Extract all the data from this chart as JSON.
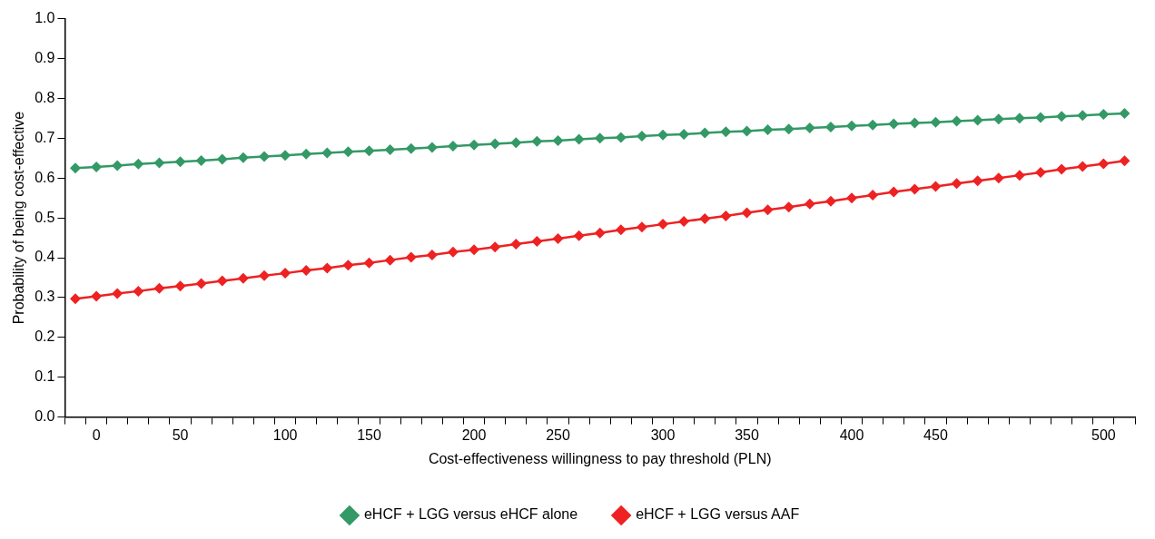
{
  "chart_data": {
    "type": "line",
    "xlabel": "Cost-effectiveness willingness to pay threshold (PLN)",
    "ylabel": "Probability of being cost-effective",
    "categories": [
      null,
      "0",
      null,
      null,
      null,
      "50",
      null,
      null,
      null,
      null,
      "100",
      null,
      null,
      null,
      "150",
      null,
      null,
      null,
      null,
      "200",
      null,
      null,
      null,
      "250",
      null,
      null,
      null,
      null,
      "300",
      null,
      null,
      null,
      "350",
      null,
      null,
      null,
      null,
      "400",
      null,
      null,
      null,
      "450",
      null,
      null,
      null,
      null,
      null,
      null,
      null,
      "500",
      null
    ],
    "series": [
      {
        "name": "eHCF + LGG versus eHCF alone",
        "color": "#339966",
        "values": [
          0.625,
          0.628,
          0.631,
          0.635,
          0.638,
          0.641,
          0.644,
          0.647,
          0.651,
          0.654,
          0.657,
          0.66,
          0.663,
          0.666,
          0.668,
          0.671,
          0.674,
          0.677,
          0.68,
          0.683,
          0.686,
          0.689,
          0.692,
          0.694,
          0.697,
          0.7,
          0.702,
          0.705,
          0.708,
          0.71,
          0.713,
          0.716,
          0.718,
          0.721,
          0.723,
          0.726,
          0.728,
          0.731,
          0.733,
          0.736,
          0.738,
          0.74,
          0.743,
          0.745,
          0.748,
          0.75,
          0.752,
          0.755,
          0.757,
          0.76,
          0.762
        ]
      },
      {
        "name": "eHCF + LGG versus AAF",
        "color": "#ee2222",
        "values": [
          0.297,
          0.303,
          0.31,
          0.316,
          0.323,
          0.329,
          0.335,
          0.342,
          0.348,
          0.355,
          0.361,
          0.368,
          0.374,
          0.381,
          0.387,
          0.394,
          0.401,
          0.407,
          0.414,
          0.42,
          0.427,
          0.434,
          0.441,
          0.448,
          0.455,
          0.462,
          0.47,
          0.477,
          0.484,
          0.491,
          0.498,
          0.505,
          0.513,
          0.52,
          0.527,
          0.535,
          0.542,
          0.55,
          0.557,
          0.565,
          0.572,
          0.579,
          0.586,
          0.593,
          0.6,
          0.607,
          0.614,
          0.622,
          0.629,
          0.636,
          0.643
        ]
      }
    ],
    "ylim": [
      0,
      1
    ],
    "yticks": [
      {
        "value": 0,
        "label": "0.0"
      },
      {
        "value": 0.1,
        "label": "0.1"
      },
      {
        "value": 0.2,
        "label": "0.2"
      },
      {
        "value": 0.3,
        "label": "0.3"
      },
      {
        "value": 0.4,
        "label": "0.4"
      },
      {
        "value": 0.5,
        "label": "0.5"
      },
      {
        "value": 0.6,
        "label": "0.6"
      },
      {
        "value": 0.7,
        "label": "0.7"
      },
      {
        "value": 0.8,
        "label": "0.8"
      },
      {
        "value": 0.9,
        "label": "0.9"
      },
      {
        "value": 1,
        "label": "1.0"
      }
    ],
    "grid": false,
    "legend": "bottom",
    "marker": "diamond",
    "line_style": "solid"
  }
}
